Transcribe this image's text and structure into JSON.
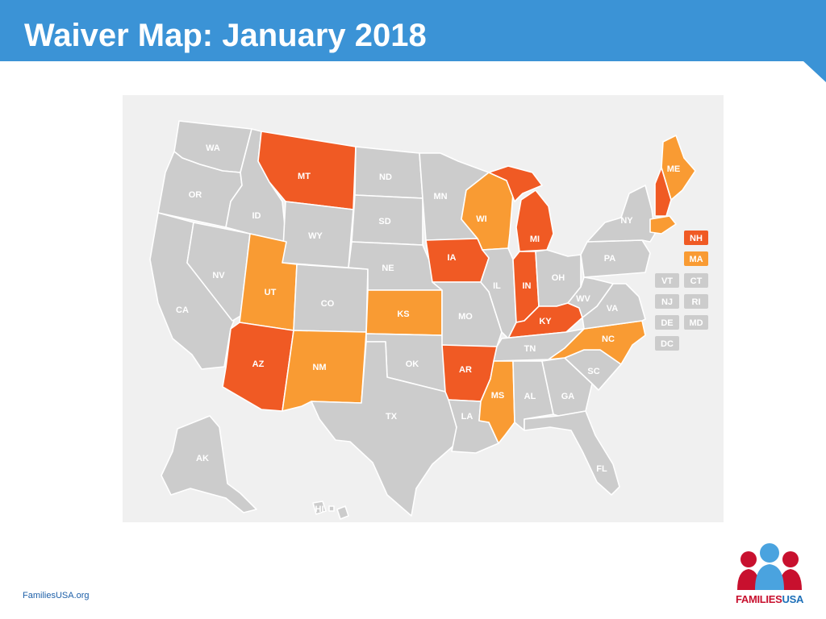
{
  "header": {
    "title": "Waiver Map: January 2018"
  },
  "colors": {
    "header_bg": "#3b93d6",
    "neutral_state": "#cccccc",
    "approved": "#f05a24",
    "pending": "#f99b33",
    "panel_bg": "#f0f0f0"
  },
  "map": {
    "states": {
      "WA": "neutral",
      "OR": "neutral",
      "CA": "neutral",
      "NV": "neutral",
      "ID": "neutral",
      "MT": "approved",
      "WY": "neutral",
      "UT": "pending",
      "AZ": "approved",
      "CO": "neutral",
      "NM": "pending",
      "ND": "neutral",
      "SD": "neutral",
      "NE": "neutral",
      "KS": "pending",
      "OK": "neutral",
      "TX": "neutral",
      "MN": "neutral",
      "IA": "approved",
      "MO": "neutral",
      "AR": "approved",
      "LA": "neutral",
      "WI": "pending",
      "IL": "neutral",
      "MI": "approved",
      "IN": "approved",
      "OH": "neutral",
      "KY": "approved",
      "TN": "neutral",
      "MS": "pending",
      "AL": "neutral",
      "GA": "neutral",
      "FL": "neutral",
      "SC": "neutral",
      "NC": "pending",
      "VA": "neutral",
      "WV": "neutral",
      "PA": "neutral",
      "NY": "neutral",
      "ME": "pending",
      "NH": "approved",
      "MA": "pending",
      "AK": "neutral",
      "HI": "neutral"
    },
    "labels": {
      "WA": "WA",
      "OR": "OR",
      "CA": "CA",
      "NV": "NV",
      "ID": "ID",
      "MT": "MT",
      "WY": "WY",
      "UT": "UT",
      "AZ": "AZ",
      "CO": "CO",
      "NM": "NM",
      "ND": "ND",
      "SD": "SD",
      "NE": "NE",
      "KS": "KS",
      "OK": "OK",
      "TX": "TX",
      "MN": "MN",
      "IA": "IA",
      "MO": "MO",
      "AR": "AR",
      "LA": "LA",
      "WI": "WI",
      "IL": "IL",
      "MI": "MI",
      "IN": "IN",
      "OH": "OH",
      "KY": "KY",
      "TN": "TN",
      "MS": "MS",
      "AL": "AL",
      "GA": "GA",
      "FL": "FL",
      "SC": "SC",
      "NC": "NC",
      "VA": "VA",
      "WV": "WV",
      "PA": "PA",
      "NY": "NY",
      "ME": "ME",
      "AK": "AK",
      "HI": "HI"
    },
    "chips": [
      {
        "code": "NH",
        "status": "approved"
      },
      {
        "code": "MA",
        "status": "pending"
      },
      {
        "code": "VT",
        "status": "neutral"
      },
      {
        "code": "CT",
        "status": "neutral"
      },
      {
        "code": "NJ",
        "status": "neutral"
      },
      {
        "code": "RI",
        "status": "neutral"
      },
      {
        "code": "DE",
        "status": "neutral"
      },
      {
        "code": "MD",
        "status": "neutral"
      },
      {
        "code": "DC",
        "status": "neutral"
      }
    ]
  },
  "footer": {
    "url": "FamiliesUSA.org",
    "logo_part1": "FAMILIES",
    "logo_part2": "USA"
  }
}
